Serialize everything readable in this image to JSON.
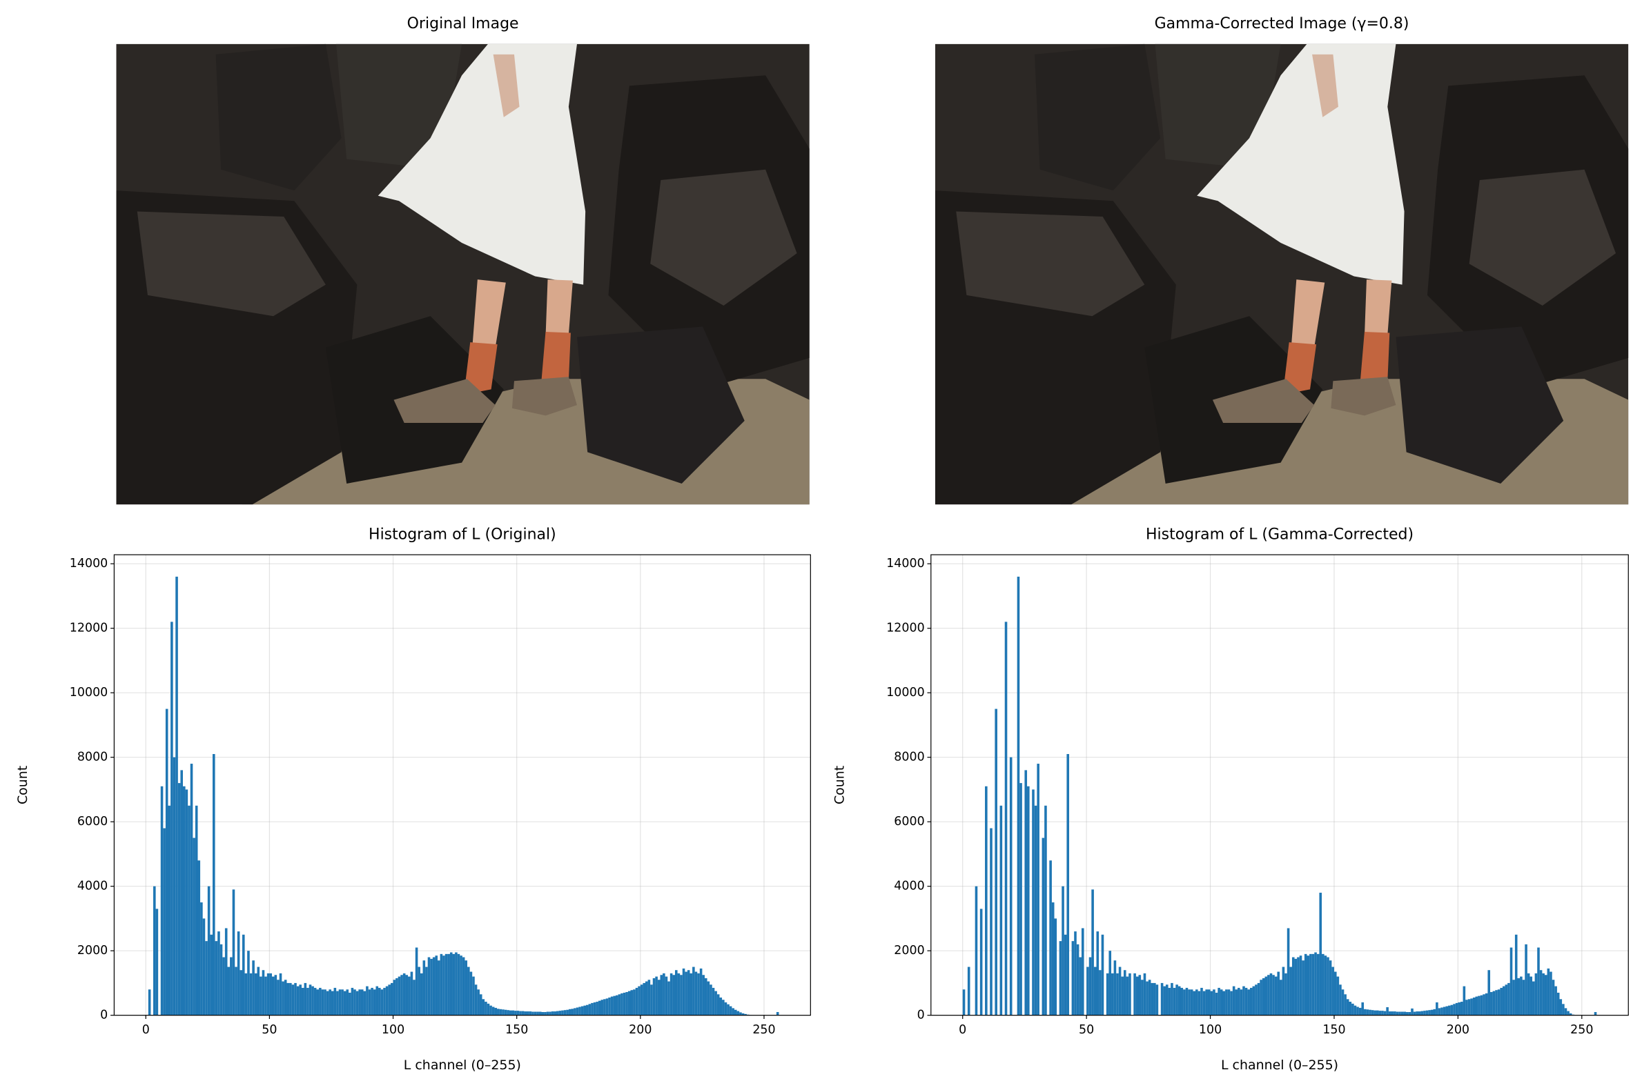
{
  "chart_data": [
    {
      "type": "image",
      "title": "Original Image"
    },
    {
      "type": "image",
      "title": "Gamma-Corrected Image (γ=0.8)"
    },
    {
      "type": "histogram",
      "title": "Histogram of L (Original)",
      "x_label": "L channel (0–255)",
      "y_label": "Count",
      "color": "#1f77b4",
      "grid": true,
      "xlim": [
        -12.8,
        268.8
      ],
      "ylim": [
        0,
        14280
      ],
      "xticks": [
        0,
        50,
        100,
        150,
        200,
        250
      ],
      "yticks": [
        0,
        2000,
        4000,
        6000,
        8000,
        10000,
        12000,
        14000
      ],
      "bins": [
        0,
        1,
        2,
        3,
        4,
        5,
        6,
        7,
        8,
        9,
        10,
        11,
        12,
        13,
        14,
        15,
        16,
        17,
        18,
        19,
        20,
        21,
        22,
        23,
        24,
        25,
        26,
        27,
        28,
        29,
        30,
        31,
        32,
        33,
        34,
        35,
        36,
        37,
        38,
        39,
        40,
        41,
        42,
        43,
        44,
        45,
        46,
        47,
        48,
        49,
        50,
        51,
        52,
        53,
        54,
        55,
        56,
        57,
        58,
        59,
        60,
        61,
        62,
        63,
        64,
        65,
        66,
        67,
        68,
        69,
        70,
        71,
        72,
        73,
        74,
        75,
        76,
        77,
        78,
        79,
        80,
        81,
        82,
        83,
        84,
        85,
        86,
        87,
        88,
        89,
        90,
        91,
        92,
        93,
        94,
        95,
        96,
        97,
        98,
        99,
        100,
        101,
        102,
        103,
        104,
        105,
        106,
        107,
        108,
        109,
        110,
        111,
        112,
        113,
        114,
        115,
        116,
        117,
        118,
        119,
        120,
        121,
        122,
        123,
        124,
        125,
        126,
        127,
        128,
        129,
        130,
        131,
        132,
        133,
        134,
        135,
        136,
        137,
        138,
        139,
        140,
        141,
        142,
        143,
        144,
        145,
        146,
        147,
        148,
        149,
        150,
        151,
        152,
        153,
        154,
        155,
        156,
        157,
        158,
        159,
        160,
        161,
        162,
        163,
        164,
        165,
        166,
        167,
        168,
        169,
        170,
        171,
        172,
        173,
        174,
        175,
        176,
        177,
        178,
        179,
        180,
        181,
        182,
        183,
        184,
        185,
        186,
        187,
        188,
        189,
        190,
        191,
        192,
        193,
        194,
        195,
        196,
        197,
        198,
        199,
        200,
        201,
        202,
        203,
        204,
        205,
        206,
        207,
        208,
        209,
        210,
        211,
        212,
        213,
        214,
        215,
        216,
        217,
        218,
        219,
        220,
        221,
        222,
        223,
        224,
        225,
        226,
        227,
        228,
        229,
        230,
        231,
        232,
        233,
        234,
        235,
        236,
        237,
        238,
        239,
        240,
        241,
        242,
        243,
        244,
        245,
        246,
        247,
        248,
        249,
        250,
        251,
        252,
        253,
        254,
        255,
        256
      ],
      "values": [
        0,
        800,
        0,
        4000,
        3300,
        0,
        7100,
        5800,
        9500,
        6500,
        12200,
        8000,
        13600,
        7200,
        7600,
        7100,
        7000,
        6500,
        7800,
        5500,
        6500,
        4800,
        3500,
        3000,
        2300,
        4000,
        2500,
        8100,
        2300,
        2600,
        2200,
        1800,
        2700,
        1500,
        1800,
        3900,
        1500,
        2600,
        1400,
        2500,
        1300,
        2000,
        1300,
        1700,
        1300,
        1500,
        1200,
        1400,
        1200,
        1300,
        1300,
        1200,
        1250,
        1100,
        1300,
        1050,
        1100,
        1000,
        1000,
        950,
        1000,
        900,
        950,
        850,
        1000,
        850,
        950,
        900,
        850,
        800,
        850,
        800,
        800,
        750,
        800,
        750,
        850,
        750,
        800,
        800,
        750,
        800,
        700,
        850,
        800,
        750,
        800,
        800,
        750,
        900,
        800,
        850,
        800,
        900,
        850,
        800,
        850,
        900,
        950,
        1000,
        1100,
        1150,
        1200,
        1250,
        1300,
        1250,
        1200,
        1350,
        1100,
        2100,
        1500,
        1300,
        1700,
        1500,
        1800,
        1750,
        1800,
        1850,
        1700,
        1900,
        1850,
        1900,
        1900,
        1950,
        1900,
        1950,
        1900,
        1850,
        1800,
        1700,
        1500,
        1350,
        1200,
        950,
        800,
        650,
        500,
        420,
        360,
        300,
        260,
        230,
        200,
        190,
        180,
        170,
        160,
        150,
        150,
        140,
        140,
        130,
        130,
        120,
        120,
        120,
        110,
        110,
        110,
        110,
        100,
        100,
        110,
        110,
        120,
        120,
        130,
        140,
        150,
        160,
        170,
        190,
        200,
        220,
        240,
        260,
        280,
        300,
        320,
        350,
        380,
        400,
        420,
        450,
        480,
        500,
        520,
        550,
        580,
        600,
        620,
        650,
        680,
        700,
        720,
        750,
        780,
        800,
        850,
        900,
        950,
        1000,
        1050,
        1100,
        950,
        1150,
        1200,
        1100,
        1250,
        1300,
        1200,
        1050,
        1300,
        1250,
        1400,
        1300,
        1250,
        1450,
        1350,
        1400,
        1300,
        1500,
        1350,
        1300,
        1450,
        1250,
        1150,
        1050,
        950,
        850,
        750,
        650,
        550,
        480,
        400,
        340,
        280,
        220,
        170,
        130,
        90,
        60,
        40,
        20,
        10,
        5,
        0,
        0,
        0,
        0,
        0,
        0,
        0,
        0,
        0,
        100
      ]
    },
    {
      "type": "histogram",
      "title": "Histogram of L (Gamma-Corrected)",
      "x_label": "L channel (0–255)",
      "y_label": "Count",
      "color": "#1f77b4",
      "grid": true,
      "xlim": [
        -12.8,
        268.8
      ],
      "ylim": [
        0,
        14280
      ],
      "xticks": [
        0,
        50,
        100,
        150,
        200,
        250
      ],
      "yticks": [
        0,
        2000,
        4000,
        6000,
        8000,
        10000,
        12000,
        14000
      ],
      "bins": [
        0,
        1,
        2,
        3,
        4,
        5,
        6,
        7,
        8,
        9,
        10,
        11,
        12,
        13,
        14,
        15,
        16,
        17,
        18,
        19,
        20,
        21,
        22,
        23,
        24,
        25,
        26,
        27,
        28,
        29,
        30,
        31,
        32,
        33,
        34,
        35,
        36,
        37,
        38,
        39,
        40,
        41,
        42,
        43,
        44,
        45,
        46,
        47,
        48,
        49,
        50,
        51,
        52,
        53,
        54,
        55,
        56,
        57,
        58,
        59,
        60,
        61,
        62,
        63,
        64,
        65,
        66,
        67,
        68,
        69,
        70,
        71,
        72,
        73,
        74,
        75,
        76,
        77,
        78,
        79,
        80,
        81,
        82,
        83,
        84,
        85,
        86,
        87,
        88,
        89,
        90,
        91,
        92,
        93,
        94,
        95,
        96,
        97,
        98,
        99,
        100,
        101,
        102,
        103,
        104,
        105,
        106,
        107,
        108,
        109,
        110,
        111,
        112,
        113,
        114,
        115,
        116,
        117,
        118,
        119,
        120,
        121,
        122,
        123,
        124,
        125,
        126,
        127,
        128,
        129,
        130,
        131,
        132,
        133,
        134,
        135,
        136,
        137,
        138,
        139,
        140,
        141,
        142,
        143,
        144,
        145,
        146,
        147,
        148,
        149,
        150,
        151,
        152,
        153,
        154,
        155,
        156,
        157,
        158,
        159,
        160,
        161,
        162,
        163,
        164,
        165,
        166,
        167,
        168,
        169,
        170,
        171,
        172,
        173,
        174,
        175,
        176,
        177,
        178,
        179,
        180,
        181,
        182,
        183,
        184,
        185,
        186,
        187,
        188,
        189,
        190,
        191,
        192,
        193,
        194,
        195,
        196,
        197,
        198,
        199,
        200,
        201,
        202,
        203,
        204,
        205,
        206,
        207,
        208,
        209,
        210,
        211,
        212,
        213,
        214,
        215,
        216,
        217,
        218,
        219,
        220,
        221,
        222,
        223,
        224,
        225,
        226,
        227,
        228,
        229,
        230,
        231,
        232,
        233,
        234,
        235,
        236,
        237,
        238,
        239,
        240,
        241,
        242,
        243,
        244,
        245,
        246,
        247,
        248,
        249,
        250,
        251,
        252,
        253,
        254,
        255,
        256
      ],
      "values": [
        800,
        0,
        1500,
        0,
        0,
        4000,
        0,
        3300,
        0,
        7100,
        0,
        5800,
        0,
        9500,
        0,
        6500,
        0,
        12200,
        0,
        8000,
        0,
        0,
        13600,
        7200,
        0,
        7600,
        7100,
        0,
        7000,
        6500,
        7800,
        0,
        5500,
        6500,
        0,
        4800,
        3500,
        3000,
        0,
        2300,
        4000,
        2500,
        8100,
        0,
        2300,
        2600,
        2200,
        1800,
        2700,
        0,
        1500,
        1800,
        3900,
        1500,
        2600,
        1400,
        2500,
        0,
        1300,
        2000,
        1300,
        1700,
        1300,
        1500,
        1200,
        1400,
        1200,
        1300,
        0,
        1300,
        1200,
        1250,
        1100,
        1300,
        1050,
        1100,
        1000,
        1000,
        950,
        0,
        1000,
        900,
        950,
        850,
        1000,
        850,
        950,
        900,
        850,
        800,
        850,
        800,
        800,
        750,
        800,
        750,
        850,
        750,
        800,
        800,
        750,
        800,
        700,
        850,
        800,
        750,
        800,
        800,
        750,
        900,
        800,
        850,
        800,
        900,
        850,
        800,
        850,
        900,
        950,
        1000,
        1100,
        1150,
        1200,
        1250,
        1300,
        1250,
        1200,
        1350,
        1100,
        1500,
        1300,
        2700,
        1500,
        1800,
        1750,
        1800,
        1850,
        1700,
        1900,
        1850,
        1900,
        1900,
        1950,
        1900,
        3800,
        1900,
        1850,
        1800,
        1700,
        1500,
        1350,
        1200,
        950,
        800,
        650,
        500,
        420,
        360,
        300,
        260,
        230,
        400,
        190,
        180,
        170,
        160,
        150,
        150,
        140,
        140,
        130,
        250,
        120,
        120,
        120,
        110,
        110,
        110,
        110,
        100,
        100,
        210,
        110,
        120,
        120,
        130,
        140,
        150,
        160,
        170,
        190,
        400,
        220,
        240,
        260,
        280,
        300,
        320,
        350,
        380,
        400,
        420,
        900,
        480,
        500,
        520,
        550,
        580,
        600,
        620,
        650,
        680,
        1400,
        720,
        750,
        780,
        800,
        850,
        900,
        950,
        1000,
        2100,
        1100,
        2500,
        1150,
        1200,
        1100,
        2200,
        1300,
        1200,
        1050,
        1300,
        2100,
        1400,
        1300,
        1250,
        1450,
        1350,
        1100,
        900,
        700,
        500,
        350,
        220,
        130,
        60,
        20,
        5,
        0,
        0,
        0,
        0,
        0,
        0,
        0,
        100
      ]
    }
  ]
}
